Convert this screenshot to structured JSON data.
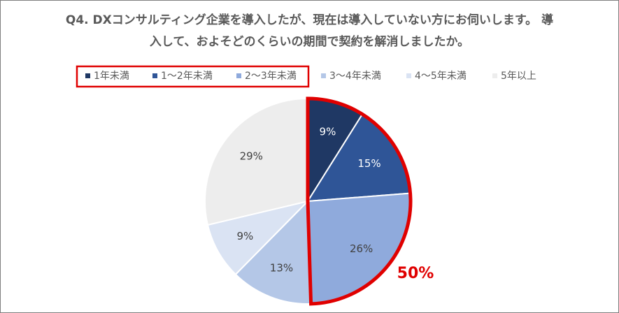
{
  "chart_data": {
    "type": "pie",
    "title": "Q4. DXコンサルティング企業を導入したが、現在は導入していない方にお伺いします。 導入して、およそどのくらいの期間で契約を解消しましたか。",
    "categories": [
      "1年未満",
      "1〜2年未満",
      "2〜3年未満",
      "3〜4年未満",
      "4〜5年未満",
      "5年以上"
    ],
    "values": [
      9,
      15,
      26,
      13,
      9,
      29
    ],
    "value_labels": [
      "9%",
      "15%",
      "26%",
      "13%",
      "9%",
      "29%"
    ],
    "colors": [
      "#1f3864",
      "#2f5597",
      "#8faadc",
      "#b4c7e7",
      "#dae3f3",
      "#ededed"
    ],
    "annotation": "50%",
    "legend": "top"
  }
}
